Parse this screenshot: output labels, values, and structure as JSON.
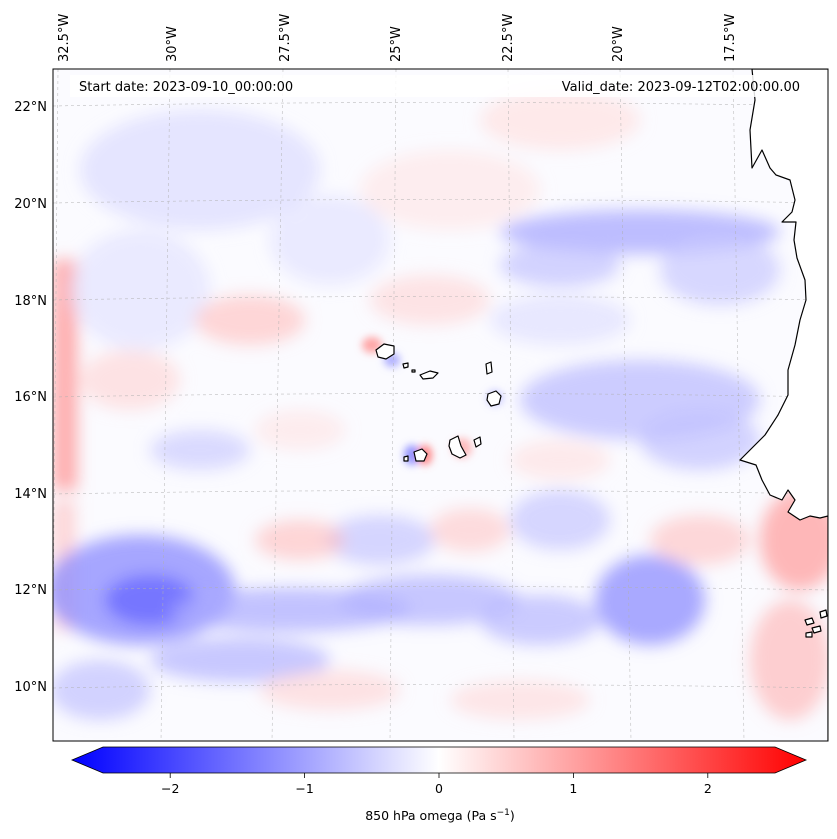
{
  "map": {
    "title_left": "Start date: 2023-09-10_00:00:00",
    "title_right": "Valid_date: 2023-09-12T02:00:00.00",
    "lon_labels": [
      "32.5°W",
      "30°W",
      "27.5°W",
      "25°W",
      "22.5°W",
      "20°W",
      "17.5°W"
    ],
    "lat_labels": [
      "22°N",
      "20°N",
      "18°N",
      "16°N",
      "14°N",
      "12°N",
      "10°N"
    ],
    "extent": {
      "lon_min": -32.8,
      "lon_max": -15.4,
      "lat_min": 8.8,
      "lat_max": 22.8
    }
  },
  "colorbar": {
    "tick_labels": [
      "−2",
      "−1",
      "0",
      "1",
      "2"
    ],
    "tick_values": [
      -2,
      -1,
      0,
      1,
      2
    ],
    "vmin": -2.6,
    "vmax": 2.6,
    "label_main": "850 hPa omega (Pa s",
    "label_exp": "−1",
    "label_close": ")",
    "colors": {
      "negative": "#0000ff",
      "zero": "#ffffff",
      "positive": "#ff0000"
    }
  },
  "colors": {
    "coastline": "#000000",
    "gridline": "#b0b0b0",
    "frame": "#000000"
  }
}
